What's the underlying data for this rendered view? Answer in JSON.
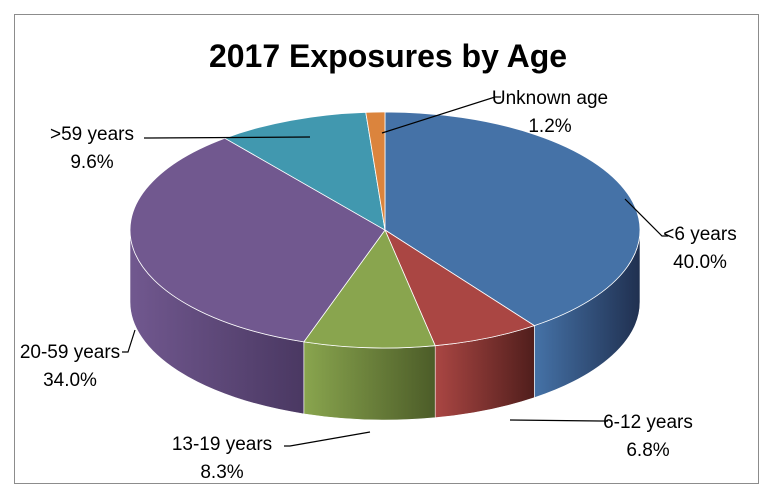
{
  "chart_data": {
    "type": "pie",
    "style": "3d",
    "title": "2017 Exposures by Age",
    "slices": [
      {
        "label": "<6 years",
        "value": 40.0,
        "value_label": "40.0%",
        "color": "#4572A7",
        "dark": "#203050"
      },
      {
        "label": "6-12 years",
        "value": 6.8,
        "value_label": "6.8%",
        "color": "#AA4643",
        "dark": "#501e1c"
      },
      {
        "label": "13-19 years",
        "value": 8.3,
        "value_label": "8.3%",
        "color": "#89A54E",
        "dark": "#4c5c28"
      },
      {
        "label": "20-59 years",
        "value": 34.0,
        "value_label": "34.0%",
        "color": "#71588F",
        "dark": "#4a3862"
      },
      {
        "label": ">59 years",
        "value": 9.6,
        "value_label": "9.6%",
        "color": "#4198AF",
        "dark": "#236070"
      },
      {
        "label": "Unknown age",
        "value": 1.2,
        "value_label": "1.2%",
        "color": "#DB843D",
        "dark": "#8a4f1f"
      }
    ]
  }
}
